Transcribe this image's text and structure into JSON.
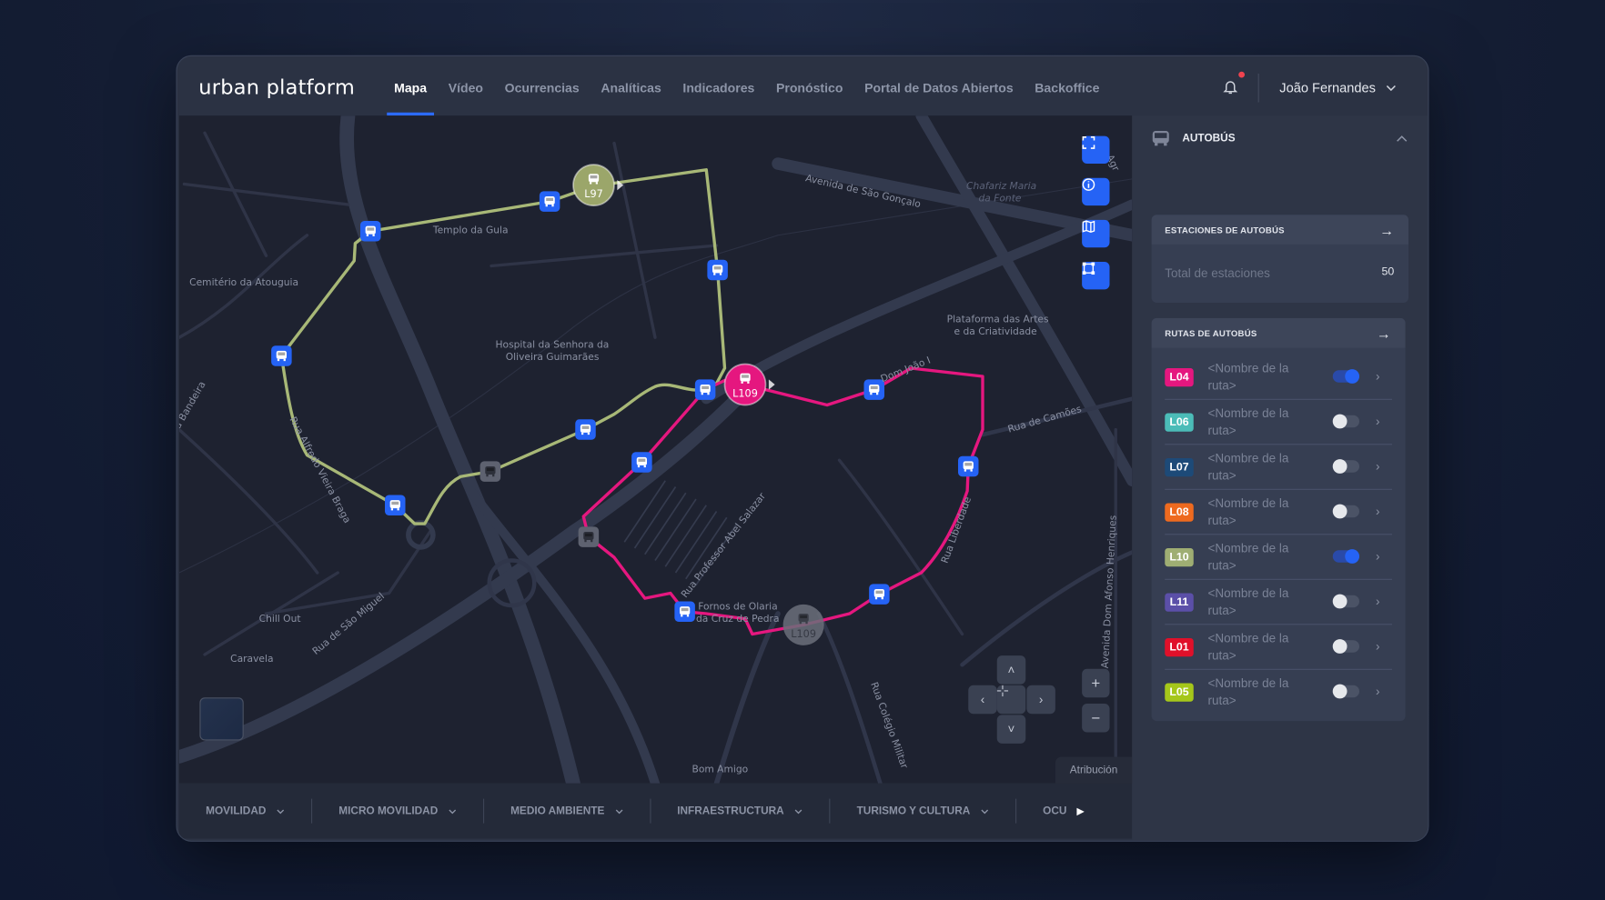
{
  "app": {
    "title": "urban platform"
  },
  "nav": {
    "items": [
      {
        "label": "Mapa",
        "active": true
      },
      {
        "label": "Vídeo"
      },
      {
        "label": "Ocurrencias"
      },
      {
        "label": "Analíticas"
      },
      {
        "label": "Indicadores"
      },
      {
        "label": "Pronóstico"
      },
      {
        "label": "Portal de Datos Abiertos"
      },
      {
        "label": "Backoffice"
      }
    ]
  },
  "user": {
    "name": "João Fernandes",
    "has_notification": true
  },
  "map": {
    "labels": [
      "Templo da Gula",
      "Cemitério da Atouguia",
      "Hospital da Senhora da",
      "Oliveira Guimarães",
      "Avenida de São Gonçalo",
      "Chafariz Maria",
      "da Fonte",
      "Plataforma das Artes",
      "e da Criatividade",
      "Rua de Camões",
      "Rua Alfredo Vieira Braga",
      "a Bandeira",
      "Chill Out",
      "Caravela",
      "Rua de São Miguel",
      "Rua Professor Abel Salazar",
      "Fornos de Olaria",
      "da Cruz de Pedra",
      "Dom João I",
      "Rua Liberdade",
      "Rua Colégio Militar",
      "Avenida Dom Afonso Henriques",
      "Bom Amigo",
      "do Agr"
    ],
    "vehicles": [
      {
        "line": "L97",
        "color": "#9ba66a"
      },
      {
        "line": "L109",
        "color": "#e5177f"
      },
      {
        "line": "L109",
        "color": "#6b6f7a",
        "inactive": true
      }
    ],
    "route_colors": {
      "L10": "#a8b877",
      "L04": "#e5177f"
    },
    "stop_color": "#2563f5",
    "controls": [
      "fullscreen-icon",
      "info-icon",
      "map-icon",
      "selection-icon"
    ],
    "pan": {
      "up": "˄",
      "down": "˅",
      "left": "‹",
      "right": "›"
    },
    "zoom_in": "+",
    "zoom_out": "−",
    "attribution": "Atribución"
  },
  "categories": [
    {
      "label": "MOVILIDAD"
    },
    {
      "label": "MICRO MOVILIDAD"
    },
    {
      "label": "MEDIO AMBIENTE"
    },
    {
      "label": "INFRAESTRUCTURA"
    },
    {
      "label": "TURISMO Y CULTURA"
    },
    {
      "label": "OCU"
    }
  ],
  "panel": {
    "title": "AUTOBÚS",
    "stations": {
      "title": "ESTACIONES DE AUTOBÚS",
      "total_label": "Total de estaciones",
      "total_value": "50"
    },
    "routes": {
      "title": "RUTAS DE AUTOBÚS",
      "items": [
        {
          "code": "L04",
          "color": "#e5177f",
          "name": "<Nombre de la ruta>",
          "enabled": true
        },
        {
          "code": "L06",
          "color": "#4bbcb8",
          "name": "<Nombre de la ruta>",
          "enabled": false
        },
        {
          "code": "L07",
          "color": "#1d4a78",
          "name": "<Nombre de la ruta>",
          "enabled": false
        },
        {
          "code": "L08",
          "color": "#ee6a1f",
          "name": "<Nombre de la ruta>",
          "enabled": false
        },
        {
          "code": "L10",
          "color": "#9fae73",
          "name": "<Nombre de la ruta>",
          "enabled": true
        },
        {
          "code": "L11",
          "color": "#5b4fa8",
          "name": "<Nombre de la ruta>",
          "enabled": false
        },
        {
          "code": "L01",
          "color": "#e0102a",
          "name": "<Nombre de la ruta>",
          "enabled": false
        },
        {
          "code": "L05",
          "color": "#a5c71a",
          "name": "<Nombre de la ruta>",
          "enabled": false
        }
      ]
    }
  }
}
